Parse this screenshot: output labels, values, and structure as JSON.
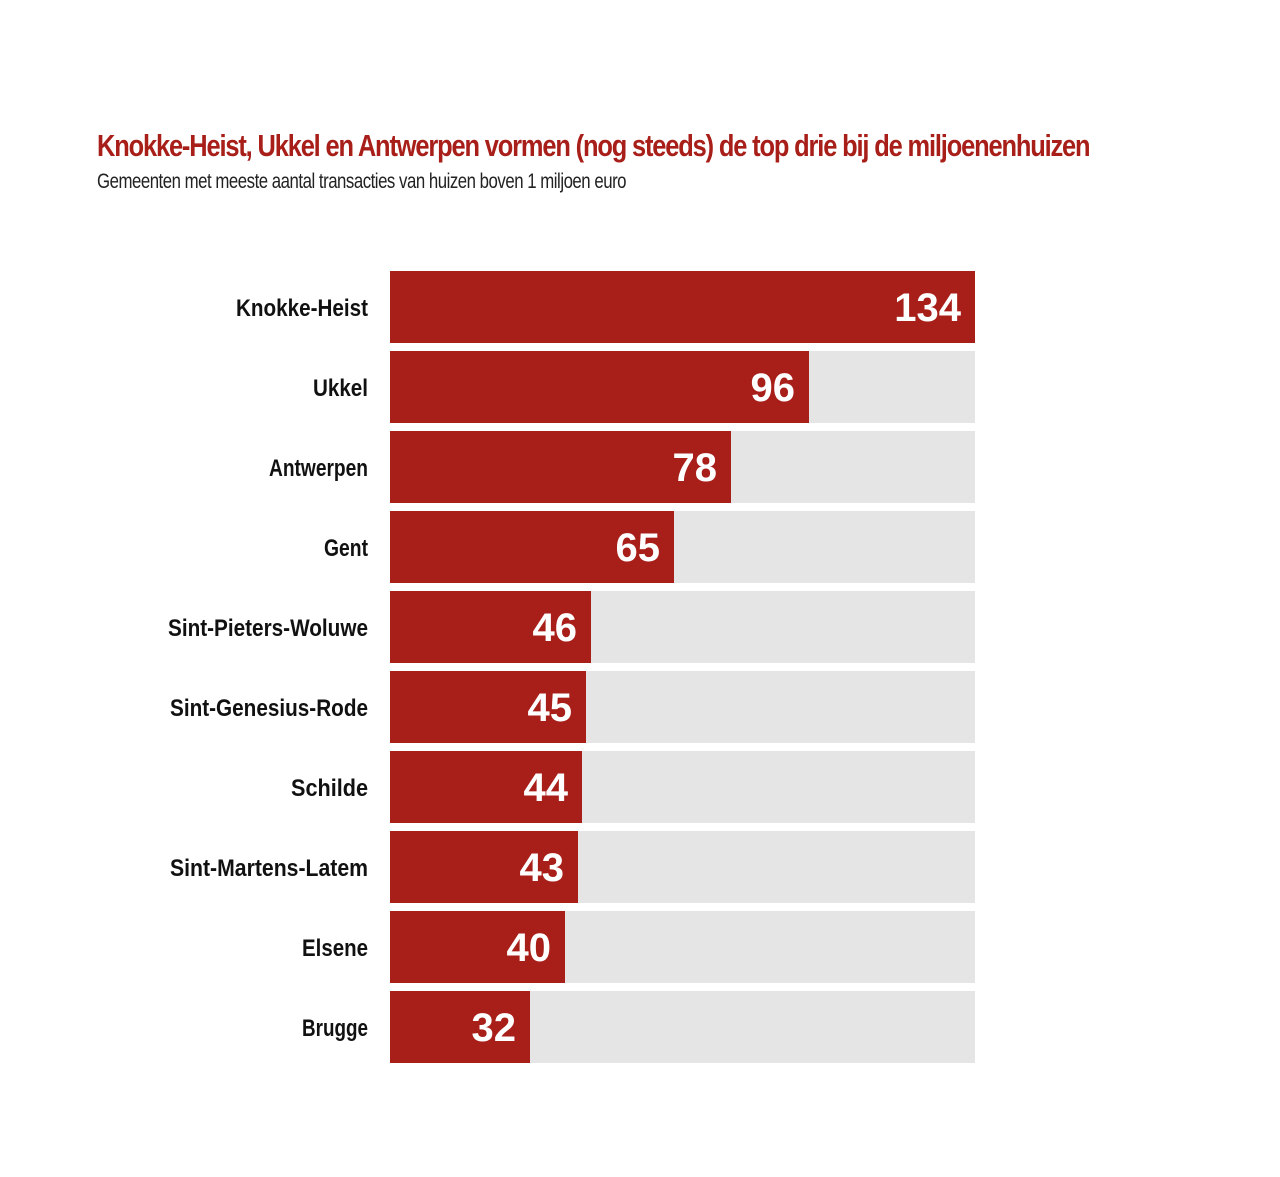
{
  "title": "Knokke-Heist, Ukkel en Antwerpen vormen (nog steeds) de top drie bij de miljoenenhuizen",
  "subtitle": "Gemeenten met meeste aantal transacties van huizen boven 1 miljoen euro",
  "colors": {
    "bar": "#a81e19",
    "track": "#e5e5e5",
    "title": "#a81e19"
  },
  "chart_data": {
    "type": "bar",
    "orientation": "horizontal",
    "title": "Knokke-Heist, Ukkel en Antwerpen vormen (nog steeds) de top drie bij de miljoenenhuizen",
    "subtitle": "Gemeenten met meeste aantal transacties van huizen boven 1 miljoen euro",
    "categories": [
      "Knokke-Heist",
      "Ukkel",
      "Antwerpen",
      "Gent",
      "Sint-Pieters-Woluwe",
      "Sint-Genesius-Rode",
      "Schilde",
      "Sint-Martens-Latem",
      "Elsene",
      "Brugge"
    ],
    "values": [
      134,
      96,
      78,
      65,
      46,
      45,
      44,
      43,
      40,
      32
    ],
    "xlim": [
      0,
      134
    ],
    "grid": false,
    "legend": "none"
  }
}
